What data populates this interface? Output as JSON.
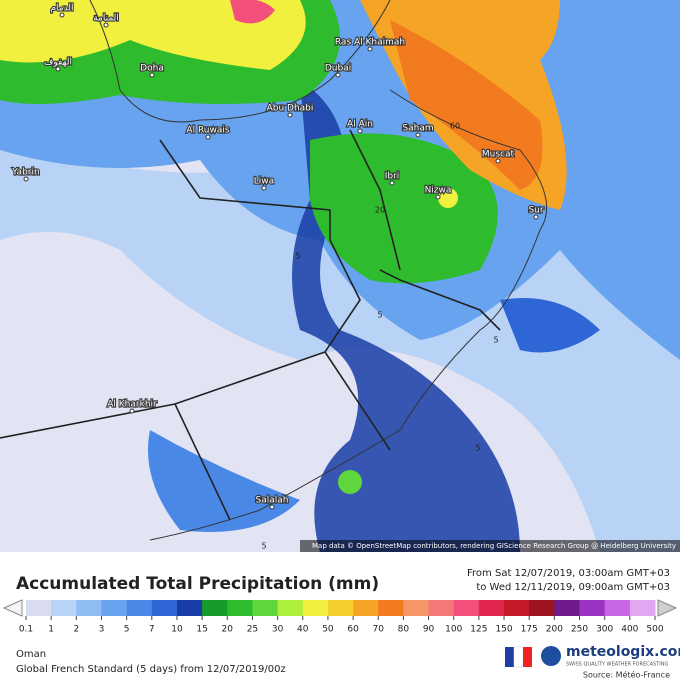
{
  "header": {
    "title": "Accumulated Total Precipitation (mm)",
    "date_from": "From Sat 12/07/2019, 03:00am GMT+03",
    "date_to": "to Wed 12/11/2019, 09:00am GMT+03"
  },
  "map": {
    "attribution": "Map data © OpenStreetMap contributors, rendering GIScience Research Group @ Heidelberg University",
    "places": [
      "الدمام",
      "المنامة",
      "الهفوف",
      "Doha",
      "Dubai",
      "Ras Al Khaimah",
      "Abu Dhabi",
      "Al Ruwais",
      "Al Ain",
      "Saham",
      "Muscat",
      "Yabrin",
      "Liwa",
      "Ibri",
      "Nizwa",
      "Sur",
      "Al Kharkhir",
      "Salalah"
    ],
    "contour_labels": [
      "60",
      "20",
      "5",
      "5",
      "5",
      "5",
      "5"
    ]
  },
  "legend": {
    "values": [
      0.1,
      1,
      2,
      3,
      5,
      7,
      10,
      15,
      20,
      25,
      30,
      40,
      50,
      60,
      70,
      80,
      90,
      100,
      125,
      150,
      175,
      200,
      250,
      300,
      400,
      500
    ],
    "colors": [
      "#d9dbf1",
      "#b9d3f6",
      "#8fbdf3",
      "#67a3ef",
      "#4a88e8",
      "#2f66d6",
      "#193da6",
      "#169a28",
      "#2fbb2e",
      "#5fd63b",
      "#aeee3d",
      "#f1f03e",
      "#f4cf2d",
      "#f5a425",
      "#f27b1f",
      "#f69566",
      "#f6797a",
      "#f24f7a",
      "#e3264f",
      "#c51a28",
      "#9c1422",
      "#6f1a8a",
      "#9b33c2",
      "#c866e6",
      "#e3a6f1"
    ]
  },
  "footer": {
    "region": "Oman",
    "model": "Global French Standard (5 days) from 12/07/2019/00z",
    "brand": "meteologix.com",
    "tagline": "SWISS QUALITY WEATHER FORECASTING",
    "source": "Source: Météo-France"
  }
}
